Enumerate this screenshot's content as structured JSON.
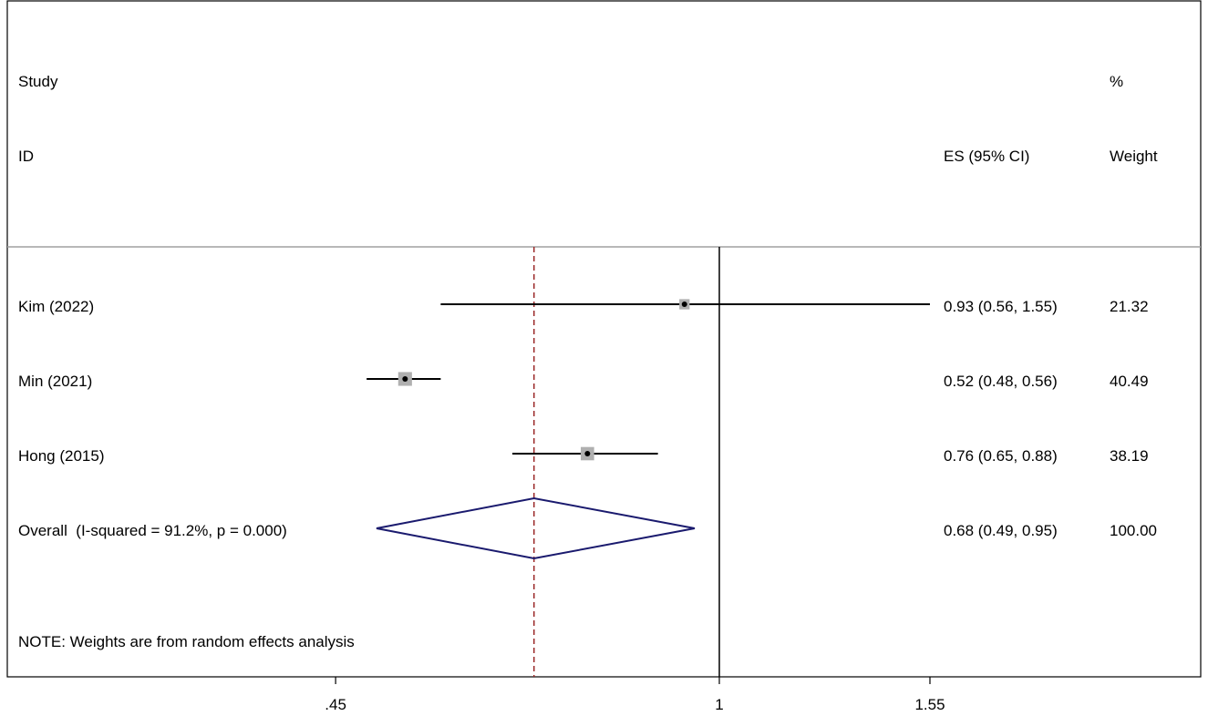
{
  "chart_data": {
    "type": "forest",
    "headers": {
      "study_line1": "Study",
      "study_line2": "ID",
      "es": "ES (95% CI)",
      "weight_line1": "%",
      "weight_line2": "Weight"
    },
    "studies": [
      {
        "id": "Kim (2022)",
        "es": 0.93,
        "lower": 0.56,
        "upper": 1.55,
        "es_text": "0.93 (0.56, 1.55)",
        "weight": "21.32"
      },
      {
        "id": "Min (2021)",
        "es": 0.52,
        "lower": 0.48,
        "upper": 0.56,
        "es_text": "0.52 (0.48, 0.56)",
        "weight": "40.49"
      },
      {
        "id": "Hong (2015)",
        "es": 0.76,
        "lower": 0.65,
        "upper": 0.88,
        "es_text": "0.76 (0.65, 0.88)",
        "weight": "38.19"
      }
    ],
    "overall": {
      "label": "Overall  (I-squared = 91.2%, p = 0.000)",
      "es": 0.68,
      "lower": 0.49,
      "upper": 0.95,
      "es_text": "0.68 (0.49, 0.95)",
      "weight": "100.00"
    },
    "note": "NOTE: Weights are from random effects analysis",
    "x_ticks": [
      {
        "value": 0.45,
        "label": ".45"
      },
      {
        "value": 1,
        "label": "1"
      },
      {
        "value": 1.55,
        "label": "1.55"
      }
    ],
    "null_line": 1,
    "scale": "log",
    "colors": {
      "ci_line": "#000000",
      "weight_box": "#b0b0b0",
      "diamond": "#1a1a6e",
      "overall_line": "#9b2a2a",
      "separator": "#a0a0a0"
    }
  }
}
